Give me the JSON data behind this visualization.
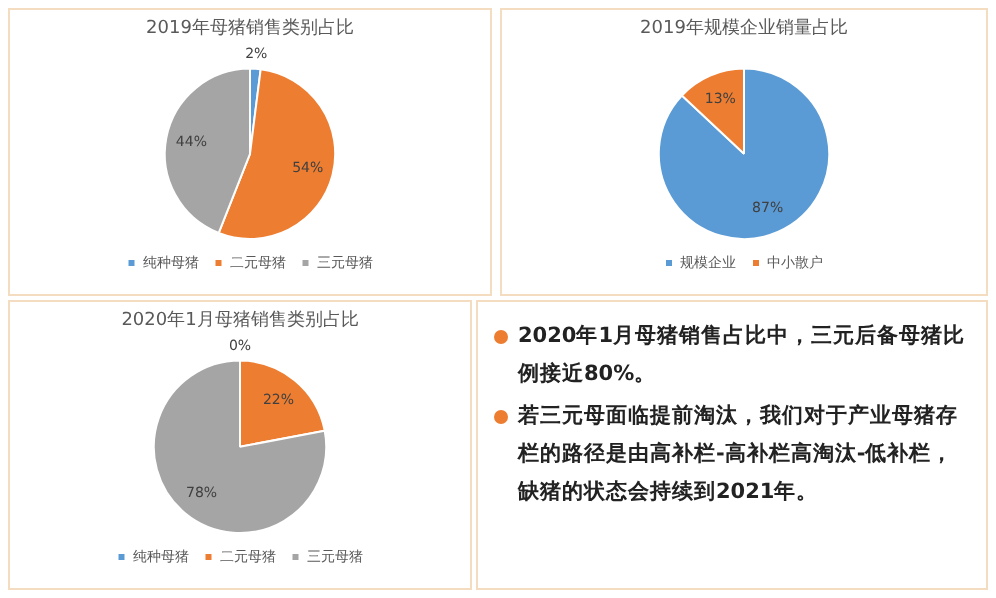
{
  "chart_data": [
    {
      "type": "pie",
      "title": "2019年母猪销售类别占比",
      "categories": [
        "纯种母猪",
        "二元母猪",
        "三元母猪"
      ],
      "values": [
        2,
        54,
        44
      ],
      "value_labels": [
        "2%",
        "54%",
        "44%"
      ],
      "colors": [
        "#5b9bd5",
        "#ed7d31",
        "#a5a5a5"
      ],
      "legend": "bottom"
    },
    {
      "type": "pie",
      "title": "2019年规模企业销量占比",
      "categories": [
        "规模企业",
        "中小散户"
      ],
      "values": [
        87,
        13
      ],
      "value_labels": [
        "87%",
        "13%"
      ],
      "colors": [
        "#5b9bd5",
        "#ed7d31"
      ],
      "legend": "bottom"
    },
    {
      "type": "pie",
      "title": "2020年1月母猪销售类别占比",
      "categories": [
        "纯种母猪",
        "二元母猪",
        "三元母猪"
      ],
      "values": [
        0,
        22,
        78
      ],
      "value_labels": [
        "0%",
        "22%",
        "78%"
      ],
      "colors": [
        "#5b9bd5",
        "#ed7d31",
        "#a5a5a5"
      ],
      "legend": "bottom"
    },
    {
      "type": "other",
      "annotations": [
        "2020年1月母猪销售占比中，三元后备母猪比例接近80%。",
        "若三元母面临提前淘汰，我们对于产业母猪存栏的路径是由高补栏-高补栏高淘汰-低补栏，缺猪的状态会持续到2021年。"
      ]
    }
  ]
}
